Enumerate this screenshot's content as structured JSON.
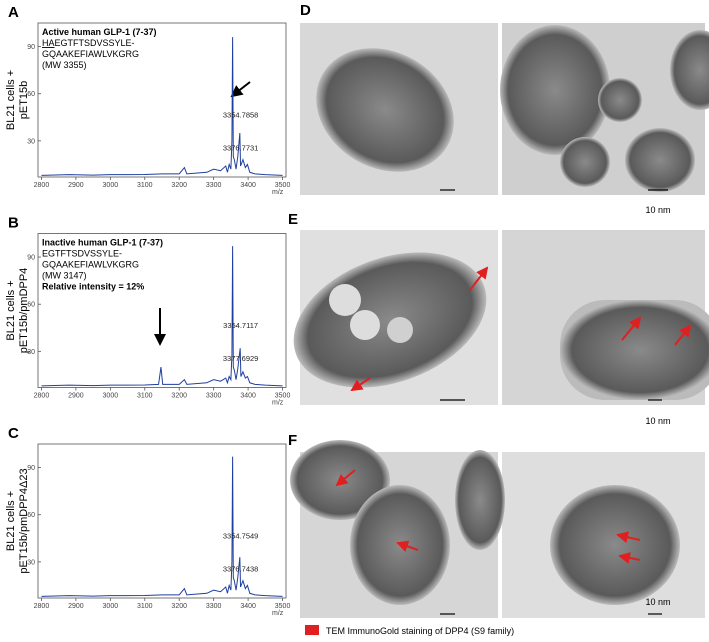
{
  "chart_data": [
    {
      "type": "line",
      "panel": "A",
      "ylabel": [
        "BL21 cells +",
        "pET15b"
      ],
      "xlabel": "m/z",
      "color": "#1f3f9f",
      "xlim": [
        2790,
        3510
      ],
      "ylim": [
        7,
        105
      ],
      "xticks": [
        2800,
        2900,
        3000,
        3100,
        3200,
        3300,
        3400,
        3500
      ],
      "yticks": [
        30,
        60,
        90
      ],
      "annotations": [
        [
          {
            "text": "Active human GLP-1 (7-37)",
            "bold": true
          }
        ],
        [
          {
            "text": "HA",
            "underline": true
          },
          {
            "text": "EGTFTSDVSSYLE-"
          }
        ],
        [
          {
            "text": "GQAAKEFIAWLVKGRG"
          }
        ],
        [
          {
            "text": "(MW 3355)"
          }
        ]
      ],
      "peak_labels": [
        "3354.7858",
        "3376.7731"
      ],
      "x": [
        2800,
        2880,
        2950,
        3000,
        3100,
        3150,
        3200,
        3215,
        3222,
        3280,
        3300,
        3320,
        3335,
        3340,
        3345,
        3350,
        3353,
        3355,
        3357,
        3360,
        3365,
        3370,
        3376,
        3378,
        3385,
        3392,
        3398,
        3405,
        3420,
        3450,
        3500
      ],
      "values": [
        8,
        8.5,
        8.2,
        8.5,
        8.6,
        9,
        9,
        13,
        9,
        10,
        12,
        11,
        14,
        10,
        15,
        12,
        30,
        96,
        20,
        18,
        12,
        20,
        35,
        14,
        18,
        13,
        15,
        10,
        9,
        8.5,
        8
      ]
    },
    {
      "type": "line",
      "panel": "B",
      "ylabel": [
        "BL21 cells +",
        "pET15b/pmDPP4"
      ],
      "xlabel": "m/z",
      "color": "#1f3f9f",
      "xlim": [
        2790,
        3510
      ],
      "ylim": [
        7,
        105
      ],
      "xticks": [
        2800,
        2900,
        3000,
        3100,
        3200,
        3300,
        3400,
        3500
      ],
      "yticks": [
        30,
        60,
        90
      ],
      "annotations": [
        [
          {
            "text": "Inactive human GLP-1 (7-37)",
            "bold": true
          }
        ],
        [
          {
            "text": "EGTFTSDVSSYLE-"
          }
        ],
        [
          {
            "text": "GQAAKEFIAWLVKGRG"
          }
        ],
        [
          {
            "text": "(MW 3147)"
          }
        ],
        [
          {
            "text": "Relative intensity = 12%",
            "bold": true
          }
        ]
      ],
      "peak_labels": [
        "3354.7117",
        "3377.6929"
      ],
      "x": [
        2800,
        2880,
        2950,
        3000,
        3100,
        3140,
        3147,
        3152,
        3200,
        3215,
        3222,
        3280,
        3300,
        3320,
        3335,
        3340,
        3345,
        3350,
        3353,
        3355,
        3357,
        3360,
        3365,
        3370,
        3377,
        3379,
        3385,
        3392,
        3398,
        3405,
        3420,
        3450,
        3500
      ],
      "values": [
        8,
        8.5,
        8.2,
        8.5,
        8.6,
        9,
        20,
        9,
        9,
        12,
        9,
        10,
        12,
        11,
        13,
        10,
        14,
        12,
        28,
        97,
        20,
        18,
        12,
        19,
        32,
        14,
        17,
        13,
        14,
        10,
        9,
        8.5,
        8
      ]
    },
    {
      "type": "line",
      "panel": "C",
      "ylabel": [
        "BL21 cells +",
        "pET15b/pmDPP4Δ23"
      ],
      "xlabel": "m/z",
      "color": "#1f3f9f",
      "xlim": [
        2790,
        3510
      ],
      "ylim": [
        7,
        105
      ],
      "xticks": [
        2800,
        2900,
        3000,
        3100,
        3200,
        3300,
        3400,
        3500
      ],
      "yticks": [
        30,
        60,
        90
      ],
      "annotations": [],
      "peak_labels": [
        "3354.7549",
        "3376.7438"
      ],
      "x": [
        2800,
        2880,
        2950,
        3000,
        3100,
        3150,
        3200,
        3215,
        3222,
        3280,
        3300,
        3320,
        3335,
        3340,
        3345,
        3350,
        3353,
        3355,
        3357,
        3360,
        3365,
        3370,
        3376,
        3378,
        3385,
        3392,
        3398,
        3405,
        3420,
        3450,
        3500
      ],
      "values": [
        8,
        8.5,
        8.2,
        8.5,
        8.6,
        9,
        9,
        13,
        9,
        10,
        12,
        11,
        14,
        10,
        15,
        12,
        30,
        97,
        20,
        18,
        12,
        20,
        33,
        14,
        18,
        13,
        15,
        10,
        9,
        8.5,
        8
      ]
    }
  ],
  "images": {
    "panels": [
      "D",
      "E",
      "F"
    ],
    "scale_labels": [
      "10 nm",
      "10 nm",
      "10 nm"
    ],
    "legend": "TEM ImmunoGold staining of DPP4 (S9 family)"
  }
}
